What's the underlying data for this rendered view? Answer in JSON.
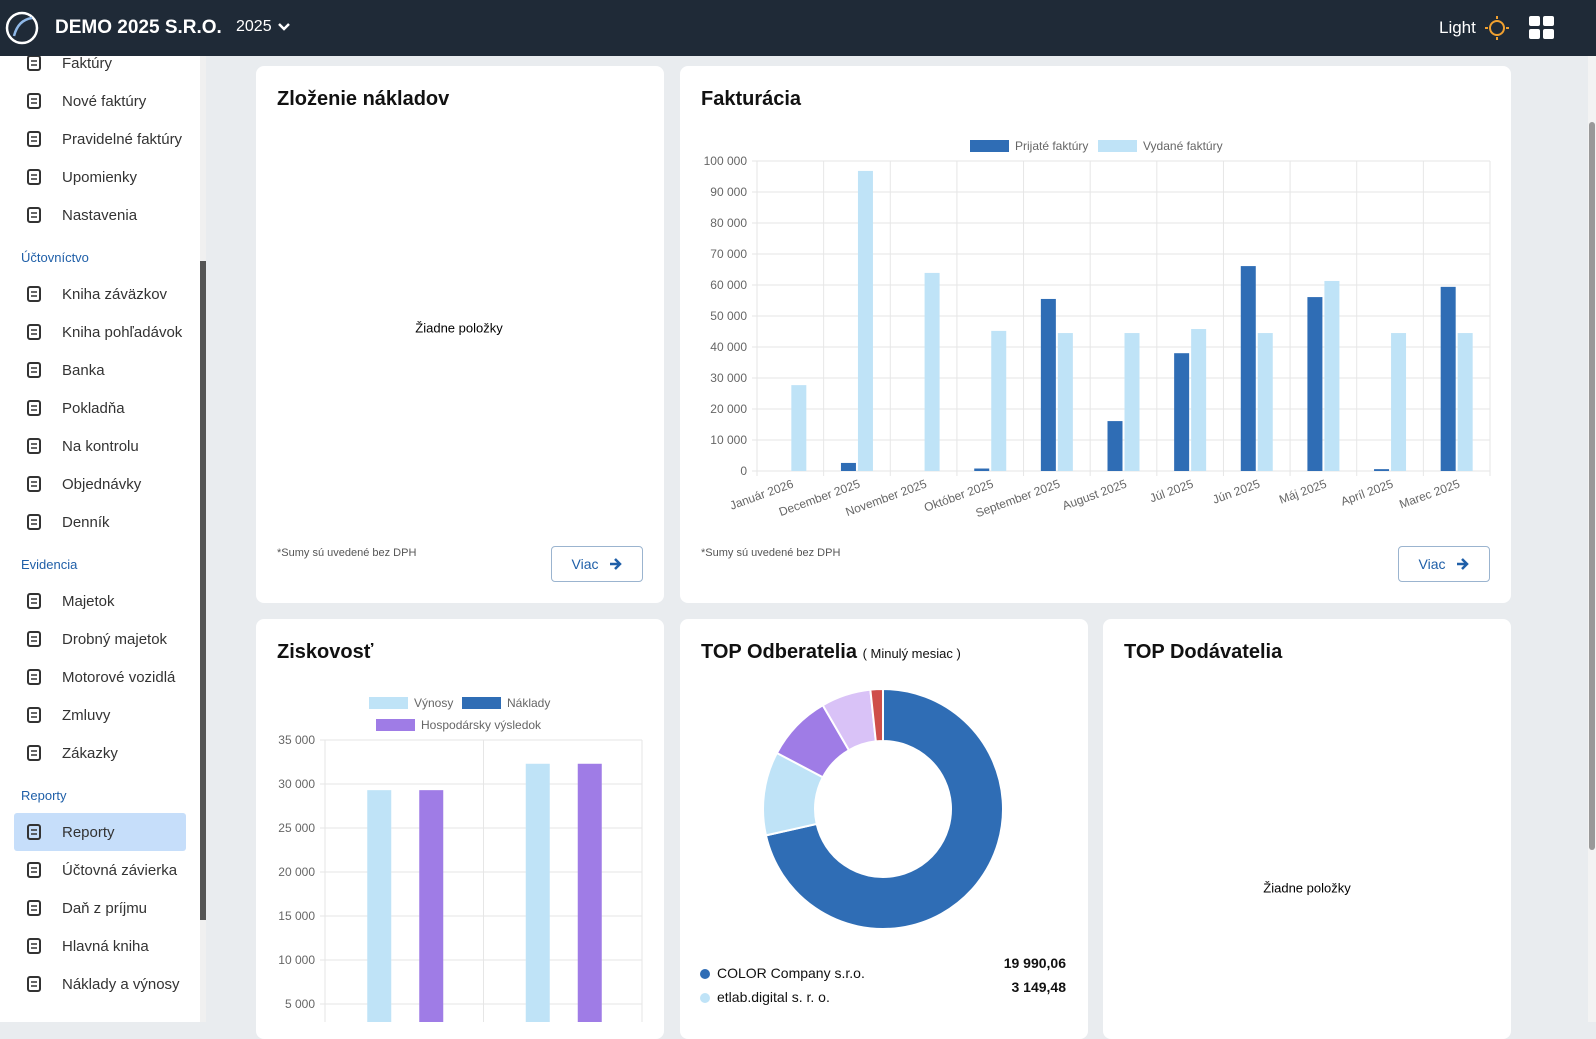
{
  "header": {
    "brand": "DEMO 2025 S.R.O.",
    "year": "2025",
    "theme": "Light"
  },
  "sidebar": {
    "groups": [
      {
        "items": [
          "Faktúry",
          "Nové faktúry",
          "Pravidelné faktúry",
          "Upomienky",
          "Nastavenia"
        ]
      },
      {
        "title": "Účtovníctvo",
        "items": [
          "Kniha záväzkov",
          "Kniha pohľadávok",
          "Banka",
          "Pokladňa",
          "Na kontrolu",
          "Objednávky",
          "Denník"
        ]
      },
      {
        "title": "Evidencia",
        "items": [
          "Majetok",
          "Drobný majetok",
          "Motorové vozidlá",
          "Zmluvy",
          "Zákazky"
        ]
      },
      {
        "title": "Reporty",
        "items": [
          "Reporty",
          "Účtovná závierka",
          "Daň z príjmu",
          "Hlavná kniha",
          "Náklady a výnosy"
        ]
      }
    ]
  },
  "cards": {
    "costs": {
      "title": "Zloženie nákladov",
      "empty": "Žiadne položky",
      "note": "*Sumy sú uvedené bez DPH",
      "button": "Viac"
    },
    "invoicing": {
      "note": "*Sumy sú uvedené bez DPH",
      "button": "Viac"
    },
    "suppliers": {
      "title": "TOP Dodávatelia",
      "empty": "Žiadne položky"
    }
  },
  "chart_data": [
    {
      "type": "bar",
      "title": "Fakturácia",
      "categories": [
        "Január 2026",
        "December 2025",
        "November 2025",
        "Október 2025",
        "September 2025",
        "August 2025",
        "Júl 2025",
        "Jún 2025",
        "Máj 2025",
        "Apríl 2025",
        "Marec 2025"
      ],
      "series": [
        {
          "name": "Prijaté faktúry",
          "color": "#2f6db5",
          "values": [
            0,
            2600,
            0,
            800,
            55500,
            16100,
            38000,
            66100,
            56100,
            600,
            59400
          ]
        },
        {
          "name": "Vydané faktúry",
          "color": "#bfe3f7",
          "values": [
            27700,
            96800,
            63900,
            45200,
            44500,
            44500,
            45800,
            44500,
            61300,
            44500,
            44500
          ]
        }
      ],
      "ylim": [
        0,
        100000
      ],
      "yticks": [
        0,
        {
          "value": 10000,
          "label": "10 000"
        },
        {
          "value": 20000,
          "label": "20 000"
        },
        {
          "value": 30000,
          "label": "30 000"
        },
        {
          "value": 40000,
          "label": "40 000"
        },
        {
          "value": 50000,
          "label": "50 000"
        },
        {
          "value": 60000,
          "label": "60 000"
        },
        {
          "value": 70000,
          "label": "70 000"
        },
        {
          "value": 80000,
          "label": "80 000"
        },
        {
          "value": 90000,
          "label": "90 000"
        },
        {
          "value": 100000,
          "label": "100 000"
        }
      ],
      "grid": true
    },
    {
      "type": "bar",
      "title": "Ziskovosť",
      "categories": [
        null,
        null
      ],
      "series": [
        {
          "name": "Výnosy",
          "color": "#bfe3f7",
          "values": [
            29300,
            32300
          ]
        },
        {
          "name": "Náklady",
          "color": "#2f6db5",
          "values": [
            0,
            0
          ]
        },
        {
          "name": "Hospodársky výsledok",
          "color": "#9f7ce6",
          "values": [
            29300,
            32300
          ]
        }
      ],
      "ylim": [
        0,
        35000
      ],
      "yticks": [
        {
          "value": 5000,
          "label": "5 000"
        },
        {
          "value": 10000,
          "label": "10 000"
        },
        {
          "value": 15000,
          "label": "15 000"
        },
        {
          "value": 20000,
          "label": "20 000"
        },
        {
          "value": 25000,
          "label": "25 000"
        },
        {
          "value": 30000,
          "label": "30 000"
        },
        {
          "value": 35000,
          "label": "35 000"
        }
      ],
      "grid": true
    },
    {
      "type": "pie",
      "title": "TOP Odberatelia",
      "subtitle": "( Minulý mesiac )",
      "categories": [
        "COLOR Company s.r.o.",
        "etlab.digital s. r. o.",
        null,
        null,
        null
      ],
      "values": [
        19990.06,
        3149.48,
        2490,
        1870,
        470
      ],
      "value_labels": [
        "19 990,06",
        "3 149,48",
        null,
        null,
        null
      ],
      "colors": [
        "#2f6db5",
        "#bfe3f7",
        "#9f7ce6",
        "#d9c2f7",
        "#cf4f4a"
      ]
    }
  ]
}
